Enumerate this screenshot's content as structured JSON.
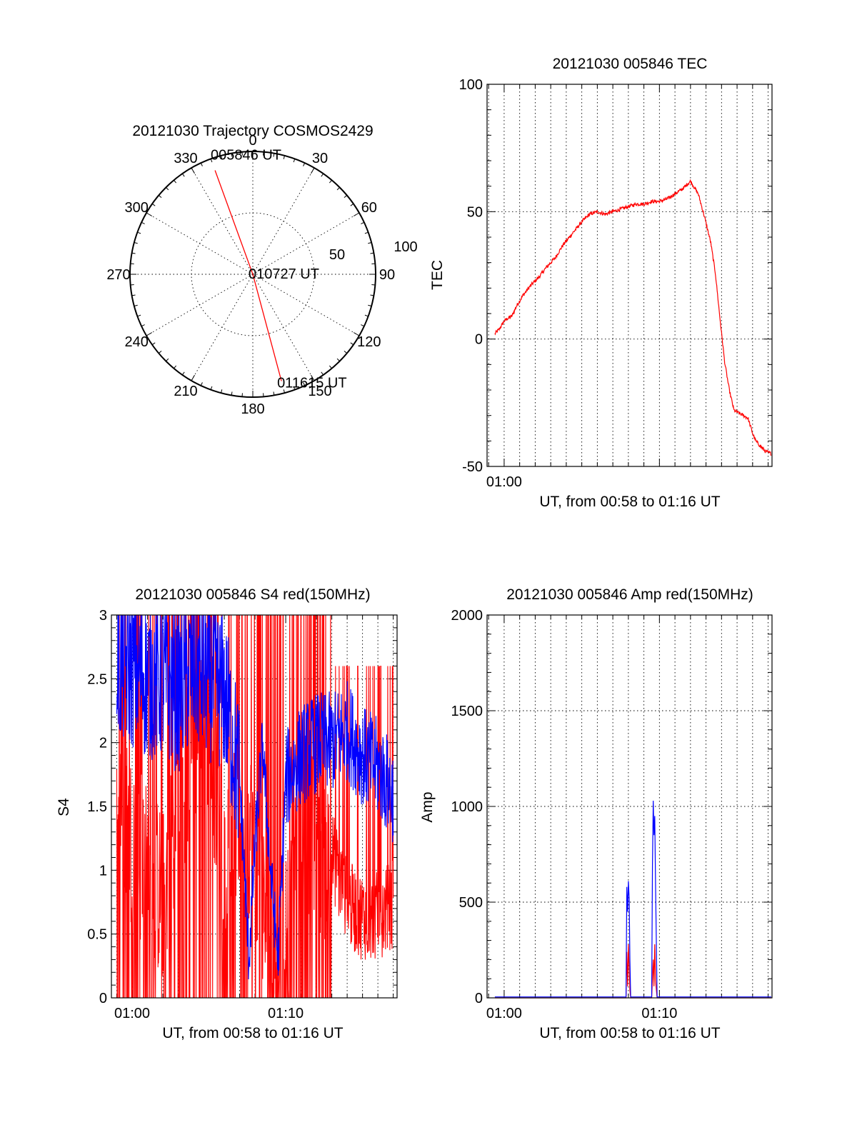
{
  "colors": {
    "red": "#ff0000",
    "blue": "#0000ff",
    "axis": "#000000",
    "background": "#ffffff"
  },
  "chart_data": [
    {
      "id": "trajectory",
      "type": "polar",
      "title": "20121030 Trajectory COSMOS2429",
      "radial_max": 100,
      "radial_labels": [
        "50",
        "100"
      ],
      "radial_grid": [
        50
      ],
      "azimuth_labels": [
        "0",
        "30",
        "60",
        "90",
        "120",
        "150",
        "180",
        "210",
        "240",
        "270",
        "300",
        "330"
      ],
      "series": [
        {
          "color": "#ff0000",
          "points": [
            {
              "azimuth": 340,
              "radius": 90
            },
            {
              "azimuth": 0,
              "radius": 0
            },
            {
              "azimuth": 165,
              "radius": 90
            }
          ]
        }
      ],
      "annotations": [
        {
          "text": "005846 UT",
          "azimuth": 340,
          "radius": 90
        },
        {
          "text": "010727 UT",
          "azimuth": 0,
          "radius": 0
        },
        {
          "text": "011615 UT",
          "azimuth": 165,
          "radius": 90
        }
      ],
      "grid": true
    },
    {
      "id": "tec",
      "type": "line",
      "title": "20121030 005846 TEC",
      "xlabel": "UT, from 00:58 to 01:16 UT",
      "ylabel": "TEC",
      "x_unit": "minutes after 00:00 UT",
      "xlim": [
        58.9,
        77.25
      ],
      "ylim": [
        -50,
        100
      ],
      "yticks": [
        -50,
        0,
        50,
        100
      ],
      "xtick_labels": [
        {
          "x": 60,
          "label": "01:00"
        }
      ],
      "grid": true,
      "series": [
        {
          "color": "#ff0000",
          "x": [
            59.4,
            59.7,
            60.0,
            60.2,
            60.5,
            60.8,
            61.2,
            61.7,
            62.2,
            62.7,
            63.0,
            63.3,
            63.8,
            64.2,
            64.6,
            65.0,
            65.5,
            66.0,
            66.5,
            67.0,
            67.5,
            68.0,
            68.5,
            69.0,
            69.5,
            70.0,
            70.5,
            71.0,
            71.5,
            72.0,
            72.5,
            72.9,
            73.3,
            73.6,
            73.9,
            74.2,
            74.5,
            74.8,
            75.1,
            75.4,
            75.7,
            76.0,
            76.2,
            76.5,
            76.8,
            77.2
          ],
          "y": [
            2,
            4,
            7,
            8,
            9,
            13,
            17,
            21,
            24,
            28,
            30,
            32,
            37,
            40,
            43,
            46,
            49,
            50,
            49,
            50,
            51,
            52,
            53,
            53,
            54,
            54,
            55,
            57,
            59,
            62,
            57,
            48,
            38,
            26,
            8,
            -9,
            -20,
            -28,
            -29,
            -30,
            -31,
            -37,
            -40,
            -42,
            -44,
            -45
          ]
        }
      ]
    },
    {
      "id": "s4",
      "type": "line",
      "title": "20121030 005846 S4 red(150MHz)",
      "xlabel": "UT, from 00:58 to 01:16 UT",
      "ylabel": "S4",
      "x_unit": "minutes after 00:00 UT",
      "xlim": [
        58.65,
        77.25
      ],
      "ylim": [
        0,
        3
      ],
      "yticks": [
        "0",
        "0.5",
        "1",
        "1.5",
        "2",
        "2.5",
        "3"
      ],
      "ytick_values": [
        0,
        0.5,
        1,
        1.5,
        2,
        2.5,
        3
      ],
      "xtick_labels": [
        {
          "x": 60,
          "label": "01:00"
        },
        {
          "x": 70,
          "label": "01:10"
        }
      ],
      "grid": true,
      "series": [
        {
          "color": "#ff0000",
          "render": "dense-spikes",
          "x": [
            59.0,
            60.0,
            61.0,
            62.0,
            63.0,
            64.0,
            65.0,
            66.0,
            67.0,
            68.0,
            69.0,
            70.0,
            71.0,
            72.0,
            73.0,
            74.0,
            75.0,
            76.0,
            77.0
          ],
          "y": [
            1.8,
            1.2,
            1.0,
            0.8,
            1.5,
            2.0,
            2.2,
            1.0,
            1.5,
            1.2,
            0.3,
            0.5,
            1.5,
            1.2,
            1.0,
            0.6,
            0.5,
            0.5,
            0.6
          ]
        },
        {
          "color": "#0000ff",
          "render": "dense-band",
          "x": [
            59.0,
            60.0,
            61.0,
            62.0,
            63.0,
            64.0,
            65.0,
            66.0,
            67.0,
            67.6,
            68.0,
            68.5,
            69.0,
            69.5,
            70.0,
            71.0,
            72.0,
            73.0,
            74.0,
            75.0,
            76.0,
            77.0
          ],
          "y": [
            2.6,
            2.6,
            2.5,
            2.5,
            2.4,
            2.6,
            2.5,
            2.4,
            1.7,
            0.3,
            1.2,
            2.0,
            1.0,
            0.3,
            1.7,
            1.9,
            2.0,
            2.0,
            2.1,
            1.9,
            1.8,
            1.6
          ]
        }
      ]
    },
    {
      "id": "amp",
      "type": "line",
      "title": "20121030 005846 Amp red(150MHz)",
      "xlabel": "UT, from 00:58 to 01:16 UT",
      "ylabel": "Amp",
      "x_unit": "minutes after 00:00 UT",
      "xlim": [
        58.9,
        77.25
      ],
      "ylim": [
        0,
        2000
      ],
      "yticks": [
        0,
        500,
        1000,
        1500,
        2000
      ],
      "xtick_labels": [
        {
          "x": 60,
          "label": "01:00"
        },
        {
          "x": 70,
          "label": "01:10"
        }
      ],
      "grid": true,
      "series": [
        {
          "color": "#ff0000",
          "x": [
            59.4,
            65.0,
            67.85,
            67.9,
            67.95,
            68.0,
            68.1,
            68.15,
            69.5,
            69.6,
            69.65,
            69.7,
            69.75,
            69.85,
            69.9,
            77.2
          ],
          "y": [
            0,
            0,
            0,
            240,
            60,
            280,
            40,
            0,
            0,
            200,
            60,
            280,
            90,
            0,
            0,
            0
          ]
        },
        {
          "color": "#0000ff",
          "x": [
            59.4,
            65.0,
            67.85,
            67.9,
            67.95,
            68.0,
            68.05,
            68.1,
            68.15,
            69.5,
            69.55,
            69.6,
            69.65,
            69.7,
            69.75,
            69.8,
            69.85,
            69.9,
            77.2
          ],
          "y": [
            5,
            5,
            5,
            580,
            450,
            610,
            520,
            200,
            5,
            5,
            700,
            1030,
            850,
            950,
            600,
            300,
            5,
            5,
            5
          ]
        }
      ]
    }
  ]
}
